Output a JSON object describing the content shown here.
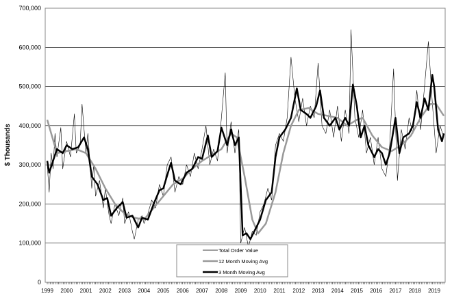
{
  "chart_data": {
    "type": "line",
    "title": "",
    "xlabel": "",
    "ylabel": "$ Thousands",
    "xlim": [
      1999,
      2019.5
    ],
    "ylim": [
      0,
      700000
    ],
    "yticks": [
      0,
      100000,
      200000,
      300000,
      400000,
      500000,
      600000,
      700000
    ],
    "ytick_labels": [
      "0",
      "100,000",
      "200,000",
      "300,000",
      "400,000",
      "500,000",
      "600,000",
      "700,000"
    ],
    "xtick_labels": [
      "1999",
      "2000",
      "2001",
      "2002",
      "2003",
      "2004",
      "2005",
      "2006",
      "2007",
      "2008",
      "2009",
      "2010",
      "2011",
      "2012",
      "2013",
      "2014",
      "2015",
      "2016",
      "2017",
      "2018",
      "2019"
    ],
    "grid": "horizontal",
    "legend_position": "bottom-center",
    "series": [
      {
        "name": "Total Order Value",
        "color": "#000000",
        "width": 0.6,
        "points": [
          [
            1999,
            300
          ],
          [
            1999.1,
            230
          ],
          [
            1999.2,
            330
          ],
          [
            1999.3,
            290
          ],
          [
            1999.4,
            380
          ],
          [
            1999.5,
            320
          ],
          [
            1999.7,
            395
          ],
          [
            1999.8,
            290
          ],
          [
            2000,
            360
          ],
          [
            2000.2,
            320
          ],
          [
            2000.4,
            430
          ],
          [
            2000.5,
            330
          ],
          [
            2000.7,
            350
          ],
          [
            2000.8,
            455
          ],
          [
            2001,
            330
          ],
          [
            2001.1,
            380
          ],
          [
            2001.3,
            240
          ],
          [
            2001.4,
            300
          ],
          [
            2001.5,
            220
          ],
          [
            2001.7,
            260
          ],
          [
            2001.9,
            190
          ],
          [
            2002,
            240
          ],
          [
            2002.2,
            170
          ],
          [
            2002.3,
            150
          ],
          [
            2002.5,
            200
          ],
          [
            2002.7,
            170
          ],
          [
            2002.9,
            215
          ],
          [
            2003,
            150
          ],
          [
            2003.2,
            180
          ],
          [
            2003.4,
            130
          ],
          [
            2003.5,
            110
          ],
          [
            2003.7,
            160
          ],
          [
            2003.9,
            170
          ],
          [
            2004,
            150
          ],
          [
            2004.2,
            175
          ],
          [
            2004.4,
            210
          ],
          [
            2004.6,
            190
          ],
          [
            2004.8,
            250
          ],
          [
            2005,
            220
          ],
          [
            2005.2,
            300
          ],
          [
            2005.4,
            320
          ],
          [
            2005.6,
            230
          ],
          [
            2005.8,
            270
          ],
          [
            2006,
            250
          ],
          [
            2006.2,
            300
          ],
          [
            2006.4,
            270
          ],
          [
            2006.6,
            330
          ],
          [
            2006.8,
            290
          ],
          [
            2007,
            340
          ],
          [
            2007.2,
            400
          ],
          [
            2007.4,
            300
          ],
          [
            2007.6,
            340
          ],
          [
            2007.8,
            310
          ],
          [
            2008,
            420
          ],
          [
            2008.2,
            535
          ],
          [
            2008.3,
            330
          ],
          [
            2008.5,
            410
          ],
          [
            2008.7,
            330
          ],
          [
            2008.9,
            390
          ],
          [
            2009,
            100
          ],
          [
            2009.2,
            140
          ],
          [
            2009.4,
            90
          ],
          [
            2009.6,
            130
          ],
          [
            2009.8,
            120
          ],
          [
            2010,
            180
          ],
          [
            2010.2,
            200
          ],
          [
            2010.4,
            240
          ],
          [
            2010.6,
            210
          ],
          [
            2010.8,
            350
          ],
          [
            2011,
            380
          ],
          [
            2011.2,
            360
          ],
          [
            2011.4,
            420
          ],
          [
            2011.6,
            575
          ],
          [
            2011.8,
            470
          ],
          [
            2012,
            410
          ],
          [
            2012.2,
            470
          ],
          [
            2012.4,
            400
          ],
          [
            2012.6,
            450
          ],
          [
            2012.8,
            420
          ],
          [
            2013,
            560
          ],
          [
            2013.2,
            400
          ],
          [
            2013.4,
            380
          ],
          [
            2013.6,
            440
          ],
          [
            2013.8,
            370
          ],
          [
            2014,
            450
          ],
          [
            2014.2,
            360
          ],
          [
            2014.4,
            440
          ],
          [
            2014.6,
            380
          ],
          [
            2014.7,
            645
          ],
          [
            2014.9,
            420
          ],
          [
            2015.1,
            370
          ],
          [
            2015.3,
            440
          ],
          [
            2015.5,
            330
          ],
          [
            2015.7,
            370
          ],
          [
            2015.9,
            300
          ],
          [
            2016.1,
            370
          ],
          [
            2016.3,
            290
          ],
          [
            2016.5,
            270
          ],
          [
            2016.7,
            350
          ],
          [
            2016.9,
            545
          ],
          [
            2017.1,
            260
          ],
          [
            2017.3,
            390
          ],
          [
            2017.5,
            340
          ],
          [
            2017.7,
            420
          ],
          [
            2017.9,
            380
          ],
          [
            2018.1,
            490
          ],
          [
            2018.3,
            390
          ],
          [
            2018.5,
            500
          ],
          [
            2018.7,
            615
          ],
          [
            2018.9,
            460
          ],
          [
            2019.1,
            330
          ],
          [
            2019.3,
            400
          ],
          [
            2019.5,
            370
          ]
        ]
      },
      {
        "name": "12 Month Moving Avg",
        "color": "#999999",
        "width": 2.5,
        "points": [
          [
            1999,
            415
          ],
          [
            1999.5,
            330
          ],
          [
            2000.5,
            340
          ],
          [
            2001,
            330
          ],
          [
            2001.5,
            290
          ],
          [
            2002,
            240
          ],
          [
            2002.5,
            200
          ],
          [
            2003,
            175
          ],
          [
            2003.5,
            165
          ],
          [
            2004,
            160
          ],
          [
            2004.5,
            190
          ],
          [
            2005,
            220
          ],
          [
            2005.5,
            250
          ],
          [
            2006,
            265
          ],
          [
            2006.5,
            290
          ],
          [
            2007,
            310
          ],
          [
            2007.5,
            325
          ],
          [
            2008,
            340
          ],
          [
            2008.5,
            380
          ],
          [
            2008.8,
            370
          ],
          [
            2009.2,
            270
          ],
          [
            2009.6,
            160
          ],
          [
            2009.9,
            125
          ],
          [
            2010.3,
            150
          ],
          [
            2010.8,
            230
          ],
          [
            2011.2,
            330
          ],
          [
            2011.6,
            400
          ],
          [
            2012,
            440
          ],
          [
            2012.5,
            445
          ],
          [
            2013,
            430
          ],
          [
            2013.5,
            425
          ],
          [
            2014,
            420
          ],
          [
            2014.5,
            400
          ],
          [
            2015,
            415
          ],
          [
            2015.3,
            420
          ],
          [
            2015.8,
            375
          ],
          [
            2016.3,
            345
          ],
          [
            2016.8,
            335
          ],
          [
            2017.3,
            350
          ],
          [
            2017.8,
            375
          ],
          [
            2018.3,
            420
          ],
          [
            2018.8,
            455
          ],
          [
            2019.1,
            455
          ],
          [
            2019.5,
            425
          ]
        ]
      },
      {
        "name": "3 Month Moving Avg",
        "color": "#000000",
        "width": 2.5,
        "points": [
          [
            1999,
            310
          ],
          [
            1999.1,
            280
          ],
          [
            1999.5,
            340
          ],
          [
            1999.8,
            330
          ],
          [
            2000,
            350
          ],
          [
            2000.3,
            340
          ],
          [
            2000.6,
            345
          ],
          [
            2000.9,
            370
          ],
          [
            2001.1,
            340
          ],
          [
            2001.3,
            270
          ],
          [
            2001.6,
            250
          ],
          [
            2001.9,
            210
          ],
          [
            2002.1,
            215
          ],
          [
            2002.3,
            170
          ],
          [
            2002.6,
            190
          ],
          [
            2002.9,
            205
          ],
          [
            2003.1,
            165
          ],
          [
            2003.4,
            170
          ],
          [
            2003.7,
            140
          ],
          [
            2003.9,
            165
          ],
          [
            2004.2,
            160
          ],
          [
            2004.5,
            200
          ],
          [
            2004.8,
            235
          ],
          [
            2005,
            240
          ],
          [
            2005.3,
            290
          ],
          [
            2005.4,
            305
          ],
          [
            2005.6,
            260
          ],
          [
            2005.9,
            250
          ],
          [
            2006.2,
            280
          ],
          [
            2006.5,
            290
          ],
          [
            2006.8,
            320
          ],
          [
            2007,
            315
          ],
          [
            2007.3,
            375
          ],
          [
            2007.5,
            320
          ],
          [
            2007.8,
            335
          ],
          [
            2008,
            395
          ],
          [
            2008.3,
            350
          ],
          [
            2008.5,
            390
          ],
          [
            2008.7,
            350
          ],
          [
            2008.9,
            370
          ],
          [
            2009.1,
            120
          ],
          [
            2009.3,
            125
          ],
          [
            2009.5,
            110
          ],
          [
            2009.8,
            140
          ],
          [
            2010,
            160
          ],
          [
            2010.3,
            210
          ],
          [
            2010.6,
            230
          ],
          [
            2010.8,
            320
          ],
          [
            2011,
            370
          ],
          [
            2011.3,
            390
          ],
          [
            2011.6,
            420
          ],
          [
            2011.9,
            495
          ],
          [
            2012.1,
            440
          ],
          [
            2012.4,
            430
          ],
          [
            2012.6,
            420
          ],
          [
            2012.9,
            450
          ],
          [
            2013.1,
            490
          ],
          [
            2013.3,
            420
          ],
          [
            2013.6,
            400
          ],
          [
            2013.9,
            420
          ],
          [
            2014.1,
            390
          ],
          [
            2014.4,
            420
          ],
          [
            2014.6,
            400
          ],
          [
            2014.8,
            505
          ],
          [
            2015,
            450
          ],
          [
            2015.2,
            370
          ],
          [
            2015.4,
            400
          ],
          [
            2015.6,
            350
          ],
          [
            2015.9,
            320
          ],
          [
            2016.1,
            340
          ],
          [
            2016.3,
            330
          ],
          [
            2016.5,
            300
          ],
          [
            2016.7,
            330
          ],
          [
            2017,
            420
          ],
          [
            2017.2,
            330
          ],
          [
            2017.4,
            370
          ],
          [
            2017.7,
            380
          ],
          [
            2017.9,
            400
          ],
          [
            2018.1,
            460
          ],
          [
            2018.3,
            420
          ],
          [
            2018.5,
            470
          ],
          [
            2018.7,
            440
          ],
          [
            2018.9,
            530
          ],
          [
            2019,
            500
          ],
          [
            2019.2,
            390
          ],
          [
            2019.4,
            360
          ],
          [
            2019.5,
            380
          ]
        ]
      }
    ],
    "value_unit_note": "points values in thousands"
  }
}
